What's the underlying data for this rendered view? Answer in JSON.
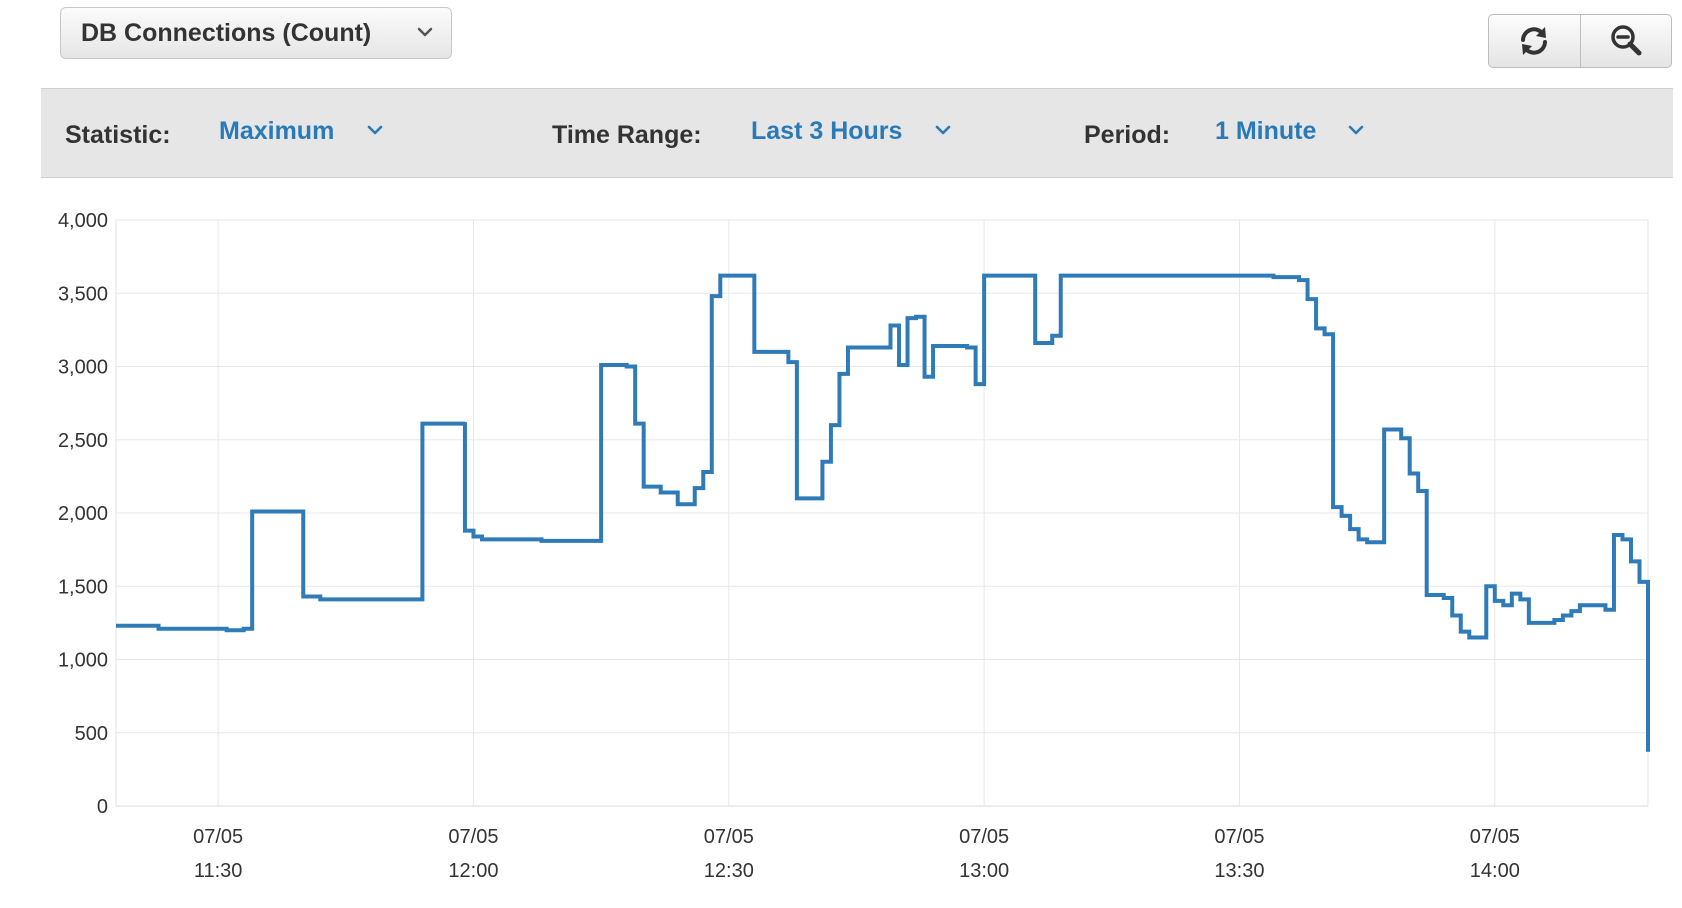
{
  "metric_select": {
    "label": "DB Connections (Count)"
  },
  "toolbar": {
    "statistic_label": "Statistic:",
    "statistic_value": "Maximum",
    "time_range_label": "Time Range:",
    "time_range_value": "Last 3 Hours",
    "period_label": "Period:",
    "period_value": "1 Minute"
  },
  "buttons": {
    "refresh_icon": "refresh-icon",
    "zoom_icon": "zoom-out-icon"
  },
  "colors": {
    "series": "#2e7bb8",
    "accent": "#2a7ab8",
    "grid": "#e8e8e8"
  },
  "chart_data": {
    "type": "line",
    "step": true,
    "grid": true,
    "ylim": [
      0,
      4000
    ],
    "yticks": [
      0,
      500,
      1000,
      1500,
      2000,
      2500,
      3000,
      3500,
      4000
    ],
    "ytick_labels": [
      "0",
      "500",
      "1,000",
      "1,500",
      "2,000",
      "2,500",
      "3,000",
      "3,500",
      "4,000"
    ],
    "xlim": [
      "11:18",
      "14:18"
    ],
    "xticks": [
      {
        "time": "11:30",
        "date": "07/05",
        "label": "11:30"
      },
      {
        "time": "12:00",
        "date": "07/05",
        "label": "12:00"
      },
      {
        "time": "12:30",
        "date": "07/05",
        "label": "12:30"
      },
      {
        "time": "13:00",
        "date": "07/05",
        "label": "13:00"
      },
      {
        "time": "13:30",
        "date": "07/05",
        "label": "13:30"
      },
      {
        "time": "14:00",
        "date": "07/05",
        "label": "14:00"
      }
    ],
    "series": [
      {
        "points": [
          [
            "11:18",
            1230
          ],
          [
            "11:23",
            1210
          ],
          [
            "11:31",
            1200
          ],
          [
            "11:33",
            1210
          ],
          [
            "11:34",
            2010
          ],
          [
            "11:40",
            1430
          ],
          [
            "11:42",
            1410
          ],
          [
            "11:53",
            1410
          ],
          [
            "11:54",
            2610
          ],
          [
            "11:59",
            2620
          ],
          [
            "11:59",
            1880
          ],
          [
            "12:00",
            1840
          ],
          [
            "12:01",
            1820
          ],
          [
            "12:08",
            1810
          ],
          [
            "12:13",
            1810
          ],
          [
            "12:15",
            3010
          ],
          [
            "12:18",
            3000
          ],
          [
            "12:19",
            2610
          ],
          [
            "12:20",
            2180
          ],
          [
            "12:22",
            2140
          ],
          [
            "12:24",
            2060
          ],
          [
            "12:26",
            2170
          ],
          [
            "12:27",
            2280
          ],
          [
            "12:28",
            3480
          ],
          [
            "12:29",
            3620
          ],
          [
            "12:33",
            3100
          ],
          [
            "12:36",
            3100
          ],
          [
            "12:37",
            3030
          ],
          [
            "12:38",
            2100
          ],
          [
            "12:41",
            2350
          ],
          [
            "12:42",
            2600
          ],
          [
            "12:43",
            2950
          ],
          [
            "12:44",
            3130
          ],
          [
            "12:48",
            3130
          ],
          [
            "12:49",
            3280
          ],
          [
            "12:50",
            3010
          ],
          [
            "12:51",
            3330
          ],
          [
            "12:52",
            3340
          ],
          [
            "12:53",
            2930
          ],
          [
            "12:54",
            3140
          ],
          [
            "12:58",
            3130
          ],
          [
            "12:59",
            2880
          ],
          [
            "13:00",
            3620
          ],
          [
            "13:06",
            3160
          ],
          [
            "13:08",
            3210
          ],
          [
            "13:09",
            3620
          ],
          [
            "13:34",
            3610
          ],
          [
            "13:37",
            3590
          ],
          [
            "13:38",
            3460
          ],
          [
            "13:39",
            3260
          ],
          [
            "13:40",
            3220
          ],
          [
            "13:41",
            2040
          ],
          [
            "13:42",
            1980
          ],
          [
            "13:43",
            1890
          ],
          [
            "13:44",
            1820
          ],
          [
            "13:45",
            1800
          ],
          [
            "13:47",
            2570
          ],
          [
            "13:49",
            2510
          ],
          [
            "13:50",
            2270
          ],
          [
            "13:51",
            2150
          ],
          [
            "13:52",
            1440
          ],
          [
            "13:54",
            1420
          ],
          [
            "13:55",
            1300
          ],
          [
            "13:56",
            1190
          ],
          [
            "13:57",
            1150
          ],
          [
            "13:59",
            1500
          ],
          [
            "14:00",
            1400
          ],
          [
            "14:01",
            1370
          ],
          [
            "14:02",
            1450
          ],
          [
            "14:03",
            1410
          ],
          [
            "14:04",
            1250
          ],
          [
            "14:07",
            1270
          ],
          [
            "14:08",
            1300
          ],
          [
            "14:09",
            1330
          ],
          [
            "14:10",
            1370
          ],
          [
            "14:13",
            1340
          ],
          [
            "14:14",
            1850
          ],
          [
            "14:15",
            1820
          ],
          [
            "14:16",
            1670
          ],
          [
            "14:17",
            1530
          ],
          [
            "14:18",
            680
          ],
          [
            "14:18",
            560
          ],
          [
            "14:18",
            380
          ],
          [
            "14:18",
            370
          ]
        ]
      }
    ]
  }
}
